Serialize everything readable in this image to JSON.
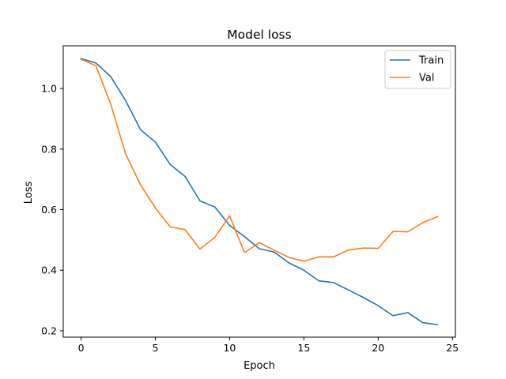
{
  "chart_data": {
    "type": "line",
    "title": "Model loss",
    "xlabel": "Epoch",
    "ylabel": "Loss",
    "xlim": [
      -1.2,
      25.2
    ],
    "ylim": [
      0.179,
      1.141
    ],
    "xticks": [
      0,
      5,
      10,
      15,
      20,
      25
    ],
    "yticks": [
      0.2,
      0.4,
      0.6,
      0.8,
      1.0
    ],
    "xtick_labels": [
      "0",
      "5",
      "10",
      "15",
      "20",
      "25"
    ],
    "ytick_labels": [
      "0.2",
      "0.4",
      "0.6",
      "0.8",
      "1.0"
    ],
    "grid": false,
    "legend_position": "top-right",
    "x": [
      0,
      1,
      2,
      3,
      4,
      5,
      6,
      7,
      8,
      9,
      10,
      11,
      12,
      13,
      14,
      15,
      16,
      17,
      18,
      19,
      20,
      21,
      22,
      23,
      24
    ],
    "series": [
      {
        "name": "Train",
        "color": "#1f77b4",
        "values": [
          1.099,
          1.084,
          1.039,
          0.96,
          0.864,
          0.823,
          0.749,
          0.71,
          0.629,
          0.609,
          0.548,
          0.511,
          0.471,
          0.46,
          0.424,
          0.4,
          0.365,
          0.359,
          0.335,
          0.31,
          0.283,
          0.25,
          0.26,
          0.227,
          0.22
        ]
      },
      {
        "name": "Val",
        "color": "#ff7f0e",
        "values": [
          1.096,
          1.075,
          0.948,
          0.784,
          0.682,
          0.606,
          0.543,
          0.534,
          0.47,
          0.508,
          0.58,
          0.458,
          0.491,
          0.466,
          0.442,
          0.43,
          0.444,
          0.444,
          0.467,
          0.473,
          0.472,
          0.528,
          0.527,
          0.557,
          0.577
        ]
      }
    ]
  }
}
